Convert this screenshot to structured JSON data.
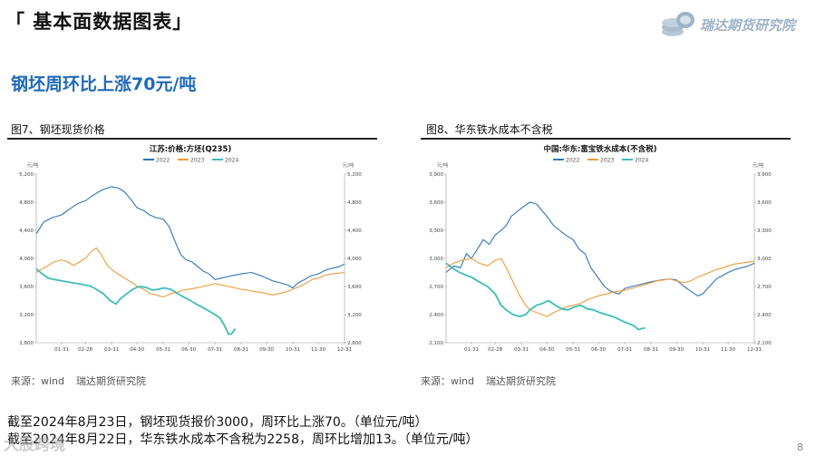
{
  "header": {
    "title": "「 基本面数据图表」",
    "logo_text": "瑞达期货研究院",
    "subtitle": "钢坯周环比上涨70元/吨"
  },
  "figures": [
    {
      "label": "图7、钢坯现货价格",
      "source": "来源：wind",
      "source_org": "瑞达期货研究院"
    },
    {
      "label": "图8、华东铁水成本不含税",
      "source": "来源：wind",
      "source_org": "瑞达期货研究院"
    }
  ],
  "notes": [
    "截至2024年8月23日，钢坯现货报价3000，周环比上涨70。（单位元/吨）",
    "截至2024年8月22日，华东铁水成本不含税为2258，周环比增加13。（单位元/吨）"
  ],
  "page_number": "8",
  "watermark": "大股跨境",
  "colors": {
    "y2022": "#2e75b6",
    "y2023": "#ed9c3c",
    "y2024": "#3dbdb8",
    "title_blue": "#1f6ab8"
  },
  "chart_data": [
    {
      "type": "line",
      "title": "江苏:价格:方坯(Q235)",
      "unit_left": "元/吨",
      "unit_right": "元/吨",
      "ylim": [
        2800,
        5200
      ],
      "yticks": [
        2800,
        3200,
        3600,
        4000,
        4400,
        4800,
        5200
      ],
      "ytick_labels": [
        "2,800",
        "3,200",
        "3,600",
        "4,000",
        "4,400",
        "4,800",
        "5,200"
      ],
      "xlim": [
        1,
        365
      ],
      "xticks": [
        31,
        59,
        90,
        120,
        151,
        181,
        212,
        243,
        273,
        304,
        334,
        365
      ],
      "xtick_labels": [
        "01-31",
        "02-28",
        "03-31",
        "04-30",
        "05-31",
        "06-30",
        "07-31",
        "08-31",
        "09-30",
        "10-31",
        "11-30",
        "12-31"
      ],
      "series": [
        {
          "name": "2022",
          "color": "#2e75b6",
          "x": [
            1,
            10,
            20,
            31,
            40,
            50,
            59,
            66,
            75,
            82,
            90,
            98,
            105,
            112,
            120,
            128,
            135,
            142,
            151,
            158,
            163,
            168,
            172,
            178,
            185,
            190,
            198,
            205,
            212,
            220,
            230,
            243,
            255,
            265,
            273,
            280,
            290,
            298,
            304,
            310,
            318,
            325,
            334,
            342,
            350,
            358,
            365
          ],
          "y": [
            4350,
            4520,
            4580,
            4620,
            4700,
            4780,
            4820,
            4880,
            4950,
            4990,
            5020,
            5000,
            4950,
            4850,
            4720,
            4680,
            4620,
            4580,
            4560,
            4450,
            4300,
            4150,
            4050,
            3980,
            3950,
            3900,
            3820,
            3780,
            3700,
            3720,
            3750,
            3780,
            3800,
            3760,
            3720,
            3680,
            3650,
            3620,
            3580,
            3650,
            3700,
            3750,
            3780,
            3830,
            3860,
            3880,
            3920
          ]
        },
        {
          "name": "2023",
          "color": "#ed9c3c",
          "x": [
            1,
            8,
            15,
            22,
            31,
            38,
            45,
            52,
            59,
            66,
            72,
            78,
            85,
            92,
            100,
            108,
            115,
            120,
            128,
            135,
            142,
            151,
            160,
            168,
            175,
            181,
            190,
            198,
            205,
            212,
            220,
            228,
            236,
            243,
            250,
            257,
            265,
            273,
            280,
            288,
            295,
            304,
            312,
            320,
            327,
            334,
            342,
            350,
            358,
            365
          ],
          "y": [
            3800,
            3850,
            3900,
            3950,
            3980,
            3950,
            3900,
            3950,
            4000,
            4100,
            4150,
            4050,
            3900,
            3820,
            3760,
            3700,
            3650,
            3600,
            3560,
            3500,
            3480,
            3450,
            3500,
            3520,
            3550,
            3560,
            3580,
            3600,
            3620,
            3640,
            3620,
            3600,
            3580,
            3560,
            3550,
            3530,
            3520,
            3500,
            3480,
            3500,
            3520,
            3560,
            3600,
            3650,
            3700,
            3720,
            3760,
            3780,
            3790,
            3800
          ]
        },
        {
          "name": "2024",
          "color": "#3dbdb8",
          "x": [
            1,
            8,
            15,
            22,
            31,
            40,
            50,
            59,
            66,
            72,
            80,
            88,
            95,
            100,
            108,
            115,
            122,
            130,
            138,
            145,
            152,
            160,
            168,
            175,
            183,
            190,
            198,
            205,
            212,
            218,
            223,
            228,
            232,
            236
          ],
          "y": [
            3850,
            3780,
            3720,
            3700,
            3680,
            3660,
            3640,
            3620,
            3600,
            3560,
            3500,
            3400,
            3350,
            3420,
            3500,
            3560,
            3600,
            3590,
            3550,
            3560,
            3580,
            3560,
            3500,
            3450,
            3400,
            3350,
            3300,
            3250,
            3200,
            3150,
            3050,
            2920,
            2930,
            3000
          ]
        }
      ]
    },
    {
      "type": "line",
      "title": "中国:华东:富宝铁水成本(不含税)",
      "unit_left": "元/吨",
      "unit_right": "元/吨",
      "ylim": [
        2100,
        3900
      ],
      "yticks": [
        2100,
        2400,
        2700,
        3000,
        3300,
        3600,
        3900
      ],
      "ytick_labels": [
        "2,100",
        "2,400",
        "2,700",
        "3,000",
        "3,300",
        "3,600",
        "3,900"
      ],
      "xlim": [
        1,
        365
      ],
      "xticks": [
        31,
        59,
        90,
        120,
        151,
        181,
        212,
        243,
        273,
        304,
        334,
        365
      ],
      "xtick_labels": [
        "01-31",
        "02-28",
        "03-31",
        "04-30",
        "05-31",
        "06-30",
        "07-31",
        "08-31",
        "09-30",
        "10-31",
        "11-30",
        "12-31"
      ],
      "series": [
        {
          "name": "2022",
          "color": "#2e75b6",
          "x": [
            1,
            10,
            18,
            25,
            31,
            38,
            45,
            52,
            59,
            66,
            72,
            78,
            85,
            92,
            100,
            108,
            115,
            120,
            128,
            135,
            142,
            151,
            158,
            165,
            172,
            180,
            188,
            195,
            205,
            212,
            220,
            230,
            243,
            255,
            265,
            273,
            282,
            290,
            298,
            304,
            312,
            320,
            328,
            334,
            342,
            350,
            358,
            365
          ],
          "y": [
            2850,
            2920,
            2900,
            3050,
            3000,
            3100,
            3200,
            3150,
            3250,
            3300,
            3350,
            3450,
            3500,
            3550,
            3600,
            3580,
            3500,
            3450,
            3350,
            3300,
            3250,
            3200,
            3100,
            3050,
            2900,
            2800,
            2700,
            2650,
            2620,
            2680,
            2700,
            2720,
            2750,
            2770,
            2780,
            2770,
            2700,
            2650,
            2600,
            2620,
            2700,
            2780,
            2820,
            2850,
            2880,
            2900,
            2920,
            2950
          ]
        },
        {
          "name": "2023",
          "color": "#ed9c3c",
          "x": [
            1,
            10,
            20,
            31,
            40,
            50,
            59,
            66,
            72,
            80,
            88,
            95,
            100,
            108,
            115,
            120,
            128,
            135,
            142,
            151,
            160,
            168,
            175,
            181,
            190,
            198,
            205,
            212,
            220,
            228,
            236,
            243,
            250,
            258,
            265,
            273,
            282,
            290,
            298,
            304,
            312,
            320,
            328,
            334,
            342,
            350,
            358,
            365
          ],
          "y": [
            2900,
            2950,
            2980,
            3000,
            2950,
            2920,
            2980,
            3000,
            2900,
            2750,
            2600,
            2500,
            2450,
            2420,
            2400,
            2380,
            2420,
            2450,
            2480,
            2500,
            2520,
            2560,
            2580,
            2600,
            2620,
            2640,
            2650,
            2660,
            2680,
            2700,
            2720,
            2740,
            2760,
            2770,
            2780,
            2760,
            2740,
            2760,
            2800,
            2820,
            2850,
            2880,
            2900,
            2920,
            2940,
            2950,
            2960,
            2970
          ]
        },
        {
          "name": "2024",
          "color": "#3dbdb8",
          "x": [
            1,
            8,
            15,
            22,
            31,
            40,
            50,
            59,
            66,
            72,
            80,
            88,
            95,
            100,
            108,
            115,
            122,
            130,
            138,
            145,
            152,
            160,
            168,
            175,
            183,
            190,
            198,
            205,
            212,
            218,
            223,
            228,
            232,
            236
          ],
          "y": [
            2950,
            2900,
            2860,
            2830,
            2800,
            2750,
            2700,
            2620,
            2500,
            2450,
            2400,
            2380,
            2400,
            2450,
            2500,
            2520,
            2550,
            2500,
            2460,
            2450,
            2480,
            2500,
            2460,
            2450,
            2420,
            2400,
            2380,
            2350,
            2320,
            2300,
            2280,
            2240,
            2250,
            2258
          ]
        }
      ]
    }
  ]
}
